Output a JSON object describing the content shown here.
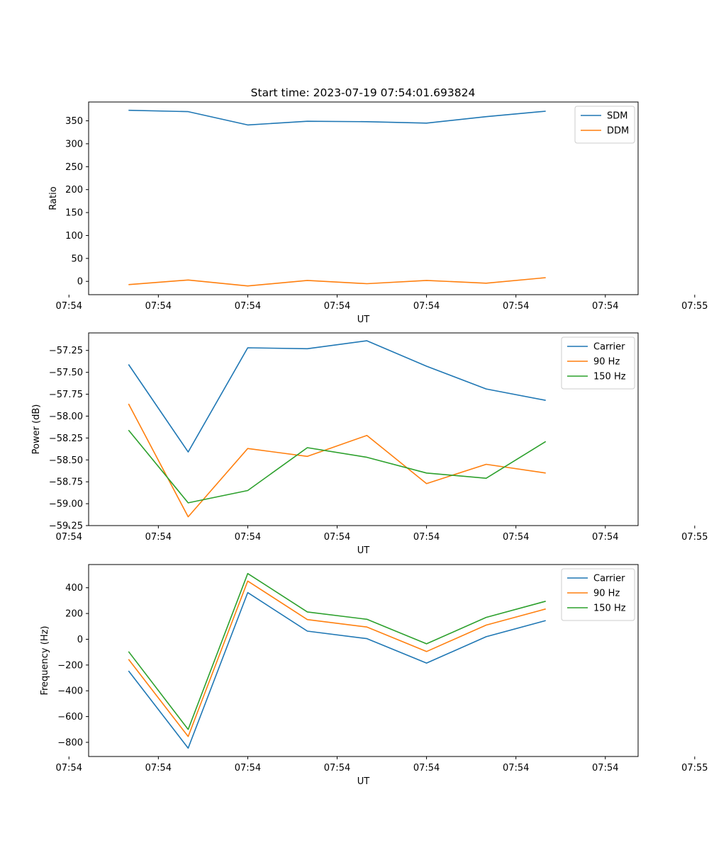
{
  "figure_title": "Start time: 2023-07-19 07:54:01.693824",
  "chart_data": [
    {
      "type": "line",
      "title": "Start time: 2023-07-19 07:54:01.693824",
      "xlabel": "UT",
      "ylabel": "Ratio",
      "x": [
        1,
        2,
        3,
        4,
        5,
        6,
        7,
        8
      ],
      "xlim": [
        0.33,
        9.55
      ],
      "xticks": [
        {
          "value": 0,
          "label": "07:54"
        },
        {
          "value": 1.5,
          "label": "07:54"
        },
        {
          "value": 3,
          "label": "07:54"
        },
        {
          "value": 4.5,
          "label": "07:54"
        },
        {
          "value": 6,
          "label": "07:54"
        },
        {
          "value": 7.5,
          "label": "07:54"
        },
        {
          "value": 9,
          "label": "07:54"
        },
        {
          "value": 10.5,
          "label": "07:55"
        }
      ],
      "ylim": [
        -29,
        391
      ],
      "yticks": [
        {
          "value": 0,
          "label": "0"
        },
        {
          "value": 50,
          "label": "50"
        },
        {
          "value": 100,
          "label": "100"
        },
        {
          "value": 150,
          "label": "150"
        },
        {
          "value": 200,
          "label": "200"
        },
        {
          "value": 250,
          "label": "250"
        },
        {
          "value": 300,
          "label": "300"
        },
        {
          "value": 350,
          "label": "350"
        }
      ],
      "legend": "top-right",
      "series": [
        {
          "name": "SDM",
          "color": "#1f77b4",
          "values": [
            373,
            370,
            341,
            349,
            348,
            345,
            359,
            371
          ]
        },
        {
          "name": "DDM",
          "color": "#ff7f0e",
          "values": [
            -7,
            3,
            -10,
            2,
            -5,
            2,
            -4,
            8
          ]
        }
      ]
    },
    {
      "type": "line",
      "title": "",
      "xlabel": "UT",
      "ylabel": "Power (dB)",
      "x": [
        1,
        2,
        3,
        4,
        5,
        6,
        7,
        8
      ],
      "xlim": [
        0.33,
        9.55
      ],
      "xticks": [
        {
          "value": 0,
          "label": "07:54"
        },
        {
          "value": 1.5,
          "label": "07:54"
        },
        {
          "value": 3,
          "label": "07:54"
        },
        {
          "value": 4.5,
          "label": "07:54"
        },
        {
          "value": 6,
          "label": "07:54"
        },
        {
          "value": 7.5,
          "label": "07:54"
        },
        {
          "value": 9,
          "label": "07:54"
        },
        {
          "value": 10.5,
          "label": "07:55"
        }
      ],
      "ylim": [
        -59.25,
        -57.05
      ],
      "yticks": [
        {
          "value": -59.25,
          "label": "−59.25"
        },
        {
          "value": -59.0,
          "label": "−59.00"
        },
        {
          "value": -58.75,
          "label": "−58.75"
        },
        {
          "value": -58.5,
          "label": "−58.50"
        },
        {
          "value": -58.25,
          "label": "−58.25"
        },
        {
          "value": -58.0,
          "label": "−58.00"
        },
        {
          "value": -57.75,
          "label": "−57.75"
        },
        {
          "value": -57.5,
          "label": "−57.50"
        },
        {
          "value": -57.25,
          "label": "−57.25"
        }
      ],
      "legend": "top-right",
      "series": [
        {
          "name": "Carrier",
          "color": "#1f77b4",
          "values": [
            -57.41,
            -58.41,
            -57.22,
            -57.23,
            -57.14,
            -57.43,
            -57.69,
            -57.82
          ]
        },
        {
          "name": "90 Hz",
          "color": "#ff7f0e",
          "values": [
            -57.86,
            -59.15,
            -58.37,
            -58.46,
            -58.22,
            -58.77,
            -58.55,
            -58.65
          ]
        },
        {
          "name": "150 Hz",
          "color": "#2ca02c",
          "values": [
            -58.16,
            -58.99,
            -58.85,
            -58.36,
            -58.47,
            -58.65,
            -58.71,
            -58.29
          ]
        }
      ]
    },
    {
      "type": "line",
      "title": "",
      "xlabel": "UT",
      "ylabel": "Frequency (Hz)",
      "x": [
        1,
        2,
        3,
        4,
        5,
        6,
        7,
        8
      ],
      "xlim": [
        0.33,
        9.55
      ],
      "xticks": [
        {
          "value": 0,
          "label": "07:54"
        },
        {
          "value": 1.5,
          "label": "07:54"
        },
        {
          "value": 3,
          "label": "07:54"
        },
        {
          "value": 4.5,
          "label": "07:54"
        },
        {
          "value": 6,
          "label": "07:54"
        },
        {
          "value": 7.5,
          "label": "07:54"
        },
        {
          "value": 9,
          "label": "07:54"
        },
        {
          "value": 10.5,
          "label": "07:55"
        }
      ],
      "ylim": [
        -910,
        580
      ],
      "yticks": [
        {
          "value": -800,
          "label": "−800"
        },
        {
          "value": -600,
          "label": "−600"
        },
        {
          "value": -400,
          "label": "−400"
        },
        {
          "value": -200,
          "label": "−200"
        },
        {
          "value": 0,
          "label": "0"
        },
        {
          "value": 200,
          "label": "200"
        },
        {
          "value": 400,
          "label": "400"
        }
      ],
      "legend": "top-right",
      "series": [
        {
          "name": "Carrier",
          "color": "#1f77b4",
          "values": [
            -245,
            -845,
            362,
            63,
            5,
            -185,
            20,
            145
          ]
        },
        {
          "name": "90 Hz",
          "color": "#ff7f0e",
          "values": [
            -155,
            -755,
            452,
            153,
            95,
            -95,
            110,
            235
          ]
        },
        {
          "name": "150 Hz",
          "color": "#2ca02c",
          "values": [
            -95,
            -700,
            510,
            212,
            155,
            -35,
            170,
            295
          ]
        }
      ]
    }
  ]
}
